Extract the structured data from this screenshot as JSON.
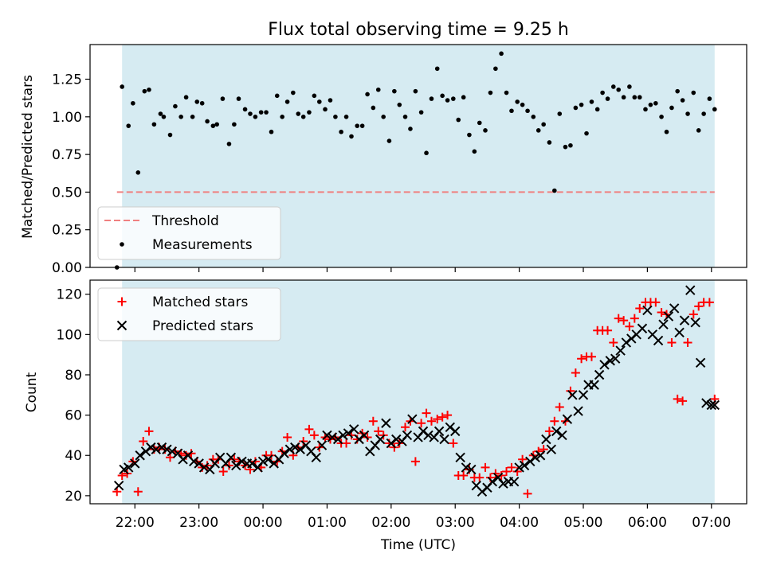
{
  "chart_data": [
    {
      "type": "scatter",
      "title": "Flux total observing time = 9.25 h",
      "ylabel": "Matched/Predicted stars",
      "xlabel": "",
      "ylim": [
        0,
        1.48
      ],
      "yticks": [
        0.0,
        0.25,
        0.5,
        0.75,
        1.0,
        1.25
      ],
      "ytick_labels": [
        "0.00",
        "0.25",
        "0.50",
        "0.75",
        "1.00",
        "1.25"
      ],
      "shaded_range_hours": [
        21.8,
        31.05
      ],
      "threshold": 0.5,
      "legend": {
        "placement": "lower-left",
        "entries": [
          "Threshold",
          "Measurements"
        ]
      },
      "series": [
        {
          "name": "Measurements",
          "color": "#000000",
          "x": [
            21.72,
            21.8,
            21.9,
            21.97,
            22.05,
            22.15,
            22.22,
            22.3,
            22.4,
            22.45,
            22.55,
            22.63,
            22.72,
            22.8,
            22.9,
            22.97,
            23.05,
            23.13,
            23.22,
            23.28,
            23.37,
            23.47,
            23.55,
            23.62,
            23.72,
            23.8,
            23.88,
            23.97,
            24.05,
            24.13,
            24.22,
            24.3,
            24.38,
            24.47,
            24.55,
            24.63,
            24.72,
            24.8,
            24.88,
            24.97,
            25.05,
            25.13,
            25.22,
            25.3,
            25.38,
            25.47,
            25.55,
            25.63,
            25.72,
            25.8,
            25.88,
            25.97,
            26.05,
            26.13,
            26.22,
            26.3,
            26.38,
            26.47,
            26.55,
            26.63,
            26.72,
            26.8,
            26.88,
            26.97,
            27.05,
            27.13,
            27.22,
            27.3,
            27.38,
            27.47,
            27.55,
            27.63,
            27.72,
            27.8,
            27.88,
            27.97,
            28.05,
            28.13,
            28.22,
            28.3,
            28.38,
            28.47,
            28.55,
            28.63,
            28.72,
            28.8,
            28.88,
            28.97,
            29.05,
            29.13,
            29.22,
            29.3,
            29.38,
            29.47,
            29.55,
            29.63,
            29.72,
            29.8,
            29.88,
            29.97,
            30.05,
            30.13,
            30.22,
            30.3,
            30.38,
            30.47,
            30.55,
            30.63,
            30.72,
            30.8,
            30.88,
            30.97,
            31.05
          ],
          "y": [
            0.0,
            1.2,
            0.94,
            1.09,
            0.63,
            1.17,
            1.18,
            0.95,
            1.02,
            1.0,
            0.88,
            1.07,
            1.0,
            1.13,
            1.0,
            1.1,
            1.09,
            0.97,
            0.94,
            0.95,
            1.12,
            0.82,
            0.95,
            1.12,
            1.05,
            1.02,
            1.0,
            1.03,
            1.03,
            0.9,
            1.14,
            1.0,
            1.1,
            1.16,
            1.02,
            1.0,
            1.03,
            1.14,
            1.1,
            1.05,
            1.11,
            1.0,
            0.9,
            1.0,
            0.87,
            0.94,
            0.94,
            1.15,
            1.06,
            1.18,
            1.0,
            0.84,
            1.17,
            1.08,
            1.0,
            0.92,
            1.17,
            1.03,
            0.76,
            1.12,
            1.32,
            1.14,
            1.11,
            1.12,
            0.98,
            1.13,
            0.88,
            0.77,
            0.96,
            0.91,
            1.16,
            1.32,
            1.42,
            1.16,
            1.04,
            1.1,
            1.08,
            1.04,
            1.0,
            0.91,
            0.95,
            0.83,
            0.51,
            1.02,
            0.8,
            0.81,
            1.06,
            1.08,
            0.89,
            1.1,
            1.05,
            1.16,
            1.12,
            1.2,
            1.18,
            1.13,
            1.2,
            1.13,
            1.13,
            1.05,
            1.08,
            1.09,
            1.0,
            0.9,
            1.06,
            1.17,
            1.11,
            1.02,
            1.16,
            0.91,
            1.02,
            1.12,
            1.05
          ]
        },
        {
          "name": "Threshold",
          "color": "#f08080",
          "x": [
            21.72,
            31.05
          ],
          "y": [
            0.5,
            0.5
          ]
        }
      ]
    },
    {
      "type": "scatter",
      "title": "",
      "xlabel": "Time (UTC)",
      "ylabel": "Count",
      "ylim": [
        16,
        127
      ],
      "yticks": [
        20,
        40,
        60,
        80,
        100,
        120
      ],
      "xticks_hours": [
        22,
        23,
        24,
        25,
        26,
        27,
        28,
        29,
        30,
        31
      ],
      "xtick_labels": [
        "22:00",
        "23:00",
        "00:00",
        "01:00",
        "02:00",
        "03:00",
        "04:00",
        "05:00",
        "06:00",
        "07:00"
      ],
      "x_range_hours": [
        21.3,
        31.55
      ],
      "shaded_range_hours": [
        21.8,
        31.05
      ],
      "legend": {
        "placement": "top-left",
        "entries": [
          "Matched stars",
          "Predicted stars"
        ]
      },
      "series": [
        {
          "name": "Matched stars",
          "color": "#ff0000",
          "x": [
            21.72,
            21.8,
            21.88,
            21.97,
            22.05,
            22.13,
            22.22,
            22.3,
            22.38,
            22.47,
            22.55,
            22.63,
            22.72,
            22.8,
            22.88,
            22.97,
            23.05,
            23.13,
            23.22,
            23.3,
            23.38,
            23.47,
            23.55,
            23.63,
            23.72,
            23.8,
            23.88,
            23.97,
            24.05,
            24.13,
            24.22,
            24.3,
            24.38,
            24.47,
            24.55,
            24.63,
            24.72,
            24.8,
            24.88,
            24.97,
            25.05,
            25.13,
            25.22,
            25.3,
            25.38,
            25.47,
            25.55,
            25.63,
            25.72,
            25.8,
            25.88,
            25.97,
            26.05,
            26.13,
            26.22,
            26.3,
            26.38,
            26.47,
            26.55,
            26.63,
            26.72,
            26.8,
            26.88,
            26.97,
            27.05,
            27.13,
            27.22,
            27.3,
            27.38,
            27.47,
            27.55,
            27.63,
            27.72,
            27.8,
            27.88,
            27.97,
            28.05,
            28.13,
            28.22,
            28.3,
            28.38,
            28.47,
            28.55,
            28.63,
            28.72,
            28.8,
            28.88,
            28.97,
            29.05,
            29.13,
            29.22,
            29.3,
            29.38,
            29.47,
            29.55,
            29.63,
            29.72,
            29.8,
            29.88,
            29.97,
            30.05,
            30.13,
            30.22,
            30.3,
            30.38,
            30.47,
            30.55,
            30.63,
            30.72,
            30.8,
            30.88,
            30.97,
            31.05
          ],
          "y": [
            22,
            30,
            31,
            37,
            22,
            47,
            52,
            43,
            44,
            43,
            39,
            42,
            41,
            40,
            41,
            37,
            34,
            35,
            38,
            38,
            32,
            35,
            38,
            37,
            35,
            33,
            37,
            34,
            40,
            40,
            37,
            42,
            49,
            40,
            44,
            47,
            53,
            50,
            44,
            49,
            48,
            49,
            46,
            46,
            50,
            48,
            51,
            49,
            57,
            52,
            50,
            46,
            44,
            46,
            54,
            57,
            37,
            56,
            61,
            57,
            58,
            59,
            60,
            46,
            30,
            30,
            33,
            29,
            29,
            34,
            29,
            31,
            30,
            32,
            34,
            32,
            38,
            21,
            40,
            42,
            43,
            52,
            57,
            64,
            57,
            72,
            81,
            88,
            89,
            89,
            102,
            102,
            102,
            96,
            108,
            107,
            104,
            108,
            113,
            116,
            116,
            116,
            111,
            110,
            96,
            68,
            67,
            96,
            110,
            114,
            116,
            116,
            68
          ],
          "marker": "+"
        },
        {
          "name": "Predicted stars",
          "color": "#000000",
          "x": [
            21.75,
            21.83,
            21.9,
            22.0,
            22.08,
            22.17,
            22.25,
            22.33,
            22.42,
            22.5,
            22.58,
            22.67,
            22.75,
            22.83,
            22.92,
            23.0,
            23.08,
            23.17,
            23.25,
            23.33,
            23.42,
            23.5,
            23.58,
            23.67,
            23.75,
            23.83,
            23.92,
            24.0,
            24.08,
            24.17,
            24.25,
            24.33,
            24.42,
            24.5,
            24.58,
            24.67,
            24.75,
            24.83,
            24.92,
            25.0,
            25.08,
            25.17,
            25.25,
            25.33,
            25.42,
            25.5,
            25.58,
            25.67,
            25.75,
            25.83,
            25.92,
            26.0,
            26.08,
            26.17,
            26.25,
            26.33,
            26.42,
            26.5,
            26.58,
            26.67,
            26.75,
            26.83,
            26.92,
            27.0,
            27.08,
            27.17,
            27.25,
            27.33,
            27.42,
            27.5,
            27.58,
            27.67,
            27.75,
            27.83,
            27.92,
            28.0,
            28.08,
            28.17,
            28.25,
            28.33,
            28.42,
            28.5,
            28.58,
            28.67,
            28.75,
            28.83,
            28.92,
            29.0,
            29.08,
            29.17,
            29.25,
            29.33,
            29.42,
            29.5,
            29.58,
            29.67,
            29.75,
            29.83,
            29.92,
            30.0,
            30.08,
            30.17,
            30.25,
            30.33,
            30.42,
            30.5,
            30.58,
            30.67,
            30.75,
            30.83,
            30.92,
            31.0,
            31.05
          ],
          "y": [
            25,
            33,
            34,
            36,
            40,
            42,
            44,
            43,
            44,
            43,
            42,
            41,
            38,
            40,
            37,
            36,
            34,
            33,
            36,
            39,
            36,
            39,
            35,
            37,
            36,
            36,
            34,
            37,
            38,
            36,
            38,
            41,
            43,
            44,
            43,
            45,
            42,
            39,
            45,
            50,
            49,
            48,
            50,
            51,
            53,
            48,
            50,
            42,
            45,
            48,
            56,
            46,
            48,
            47,
            50,
            58,
            49,
            52,
            50,
            49,
            52,
            48,
            54,
            52,
            39,
            34,
            33,
            25,
            22,
            24,
            27,
            29,
            26,
            27,
            27,
            34,
            35,
            37,
            39,
            40,
            48,
            43,
            52,
            50,
            58,
            70,
            62,
            70,
            75,
            75,
            80,
            85,
            87,
            88,
            92,
            96,
            98,
            100,
            103,
            112,
            100,
            97,
            105,
            109,
            113,
            101,
            107,
            122,
            106,
            86,
            66,
            65,
            65
          ],
          "marker": "x"
        }
      ]
    }
  ]
}
